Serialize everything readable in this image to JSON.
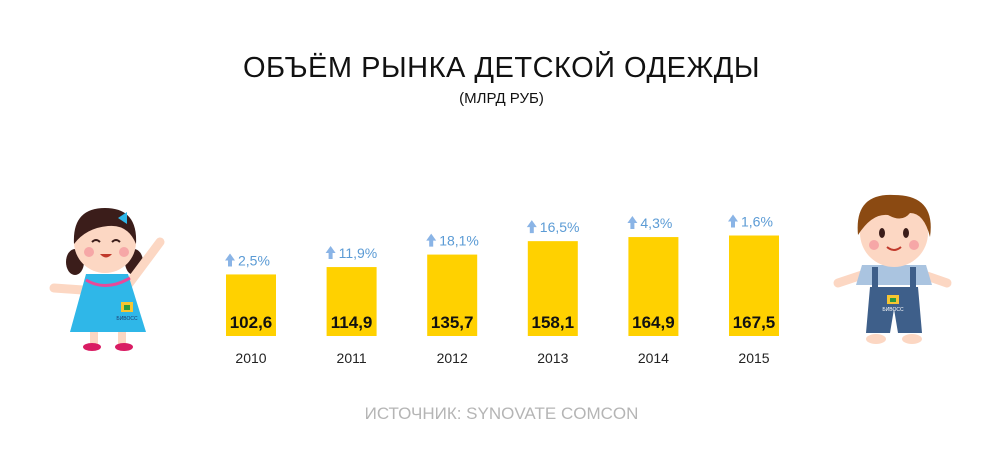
{
  "chart_data": {
    "type": "bar",
    "title": "ОБЪЁМ РЫНКА ДЕТСКОЙ ОДЕЖДЫ",
    "subtitle": "(МЛРД РУБ)",
    "categories": [
      "2010",
      "2011",
      "2012",
      "2013",
      "2014",
      "2015"
    ],
    "values": [
      102.6,
      114.9,
      135.7,
      158.1,
      164.9,
      167.5
    ],
    "value_labels": [
      "102,6",
      "114,9",
      "135,7",
      "158,1",
      "164,9",
      "167,5"
    ],
    "growth_labels": [
      "2,5%",
      "11,9%",
      "18,1%",
      "16,5%",
      "4,3%",
      "1,6%"
    ],
    "source": "ИСТОЧНИК: SYNOVATE COMCON",
    "grid": false,
    "legend": "none"
  },
  "colors": {
    "bar": "#FFD100",
    "growth_text": "#5b9bd5",
    "arrow": "#8ab4e6",
    "source_text": "#b5b5b5"
  },
  "decor": {
    "left_logo": "БИВОСС",
    "right_logo": "БИВОСС"
  }
}
